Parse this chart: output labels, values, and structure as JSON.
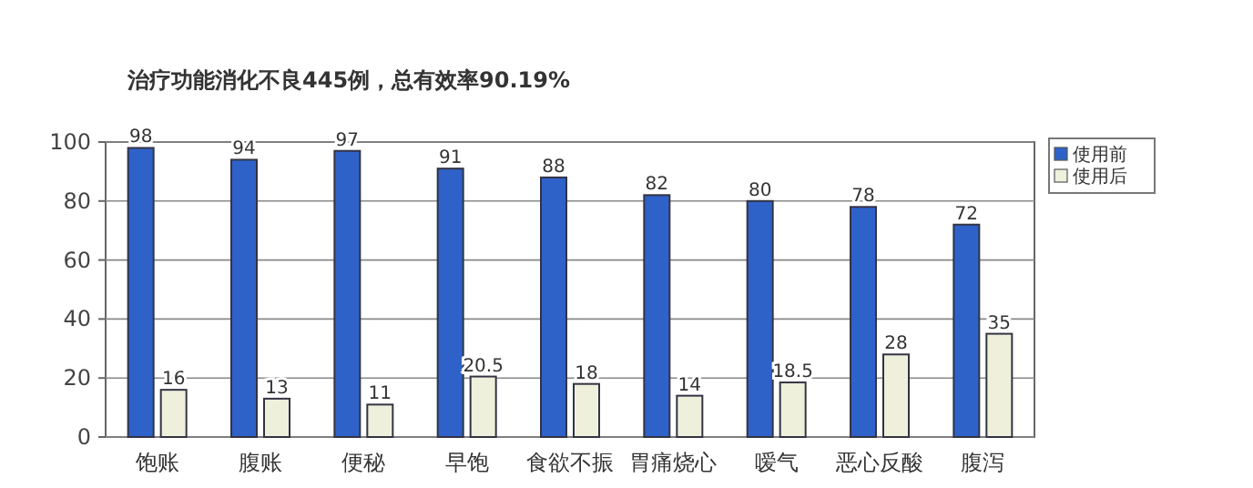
{
  "chart_data": {
    "type": "bar",
    "title": "治疗功能消化不良445例，总有效率90.19%",
    "categories": [
      "饱账",
      "腹账",
      "便秘",
      "早饱",
      "食欲不振",
      "胃痛烧心",
      "嗳气",
      "恶心反酸",
      "腹泻"
    ],
    "series": [
      {
        "name": "使用前",
        "color": "#2f62c9",
        "values": [
          98,
          94,
          97,
          91,
          88,
          82,
          80,
          78,
          72
        ]
      },
      {
        "name": "使用后",
        "color": "#eef0dc",
        "values": [
          16,
          13,
          11,
          20.5,
          18,
          14,
          18.5,
          28,
          35
        ]
      }
    ],
    "ylim": [
      0,
      100
    ],
    "yticks": [
      0,
      20,
      40,
      60,
      80,
      100
    ],
    "grid": "y",
    "legend": "right",
    "data_labels": true
  }
}
